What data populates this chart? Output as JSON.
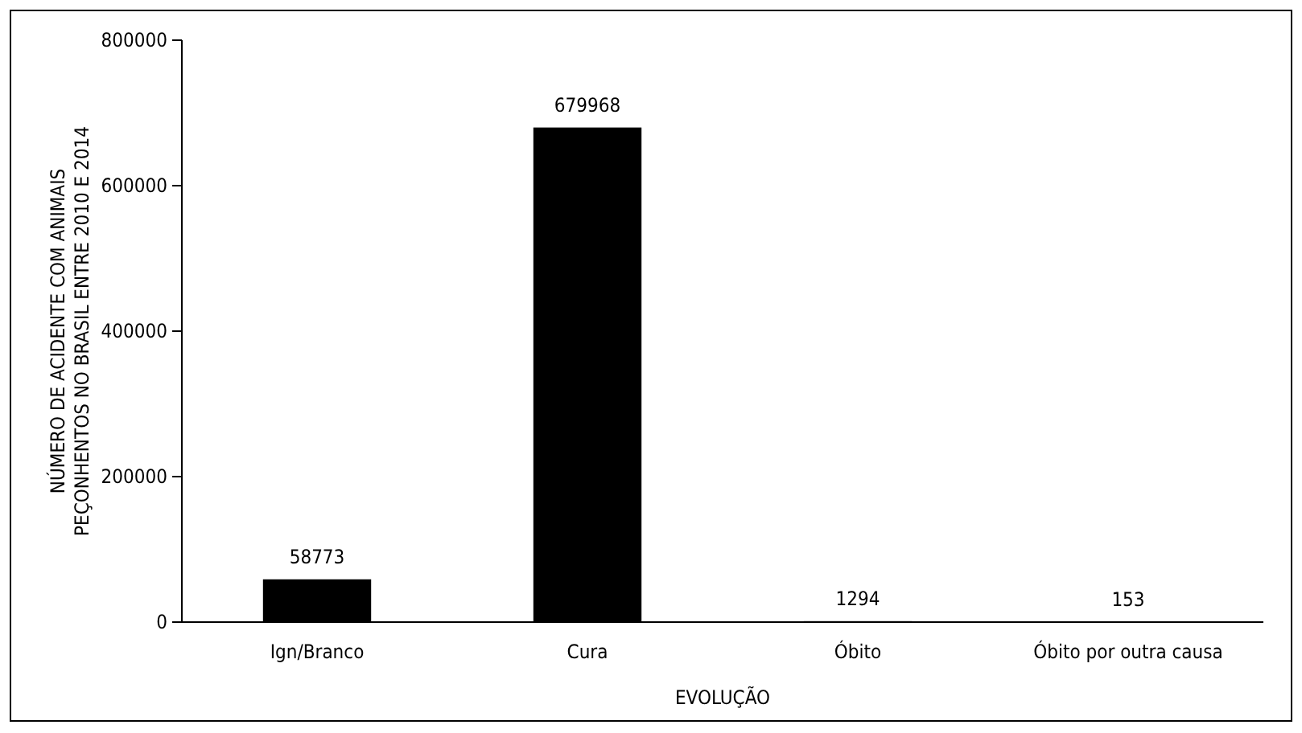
{
  "chart_data": {
    "type": "bar",
    "xlabel": "EVOLUÇÃO",
    "ylabel": "NÚMERO DE ACIDENTE COM ANIMAIS\nPEÇONHENTOS NO BRASIL ENTRE 2010 E 2014",
    "categories": [
      "Ign/Branco",
      "Cura",
      "Óbito",
      "Óbito por outra causa"
    ],
    "values": [
      58773,
      679968,
      1294,
      153
    ],
    "color": "#000000",
    "ylim": [
      0,
      800000
    ],
    "yticks": [
      0,
      200000,
      400000,
      600000,
      800000
    ],
    "data_labels": true,
    "grid": false
  }
}
